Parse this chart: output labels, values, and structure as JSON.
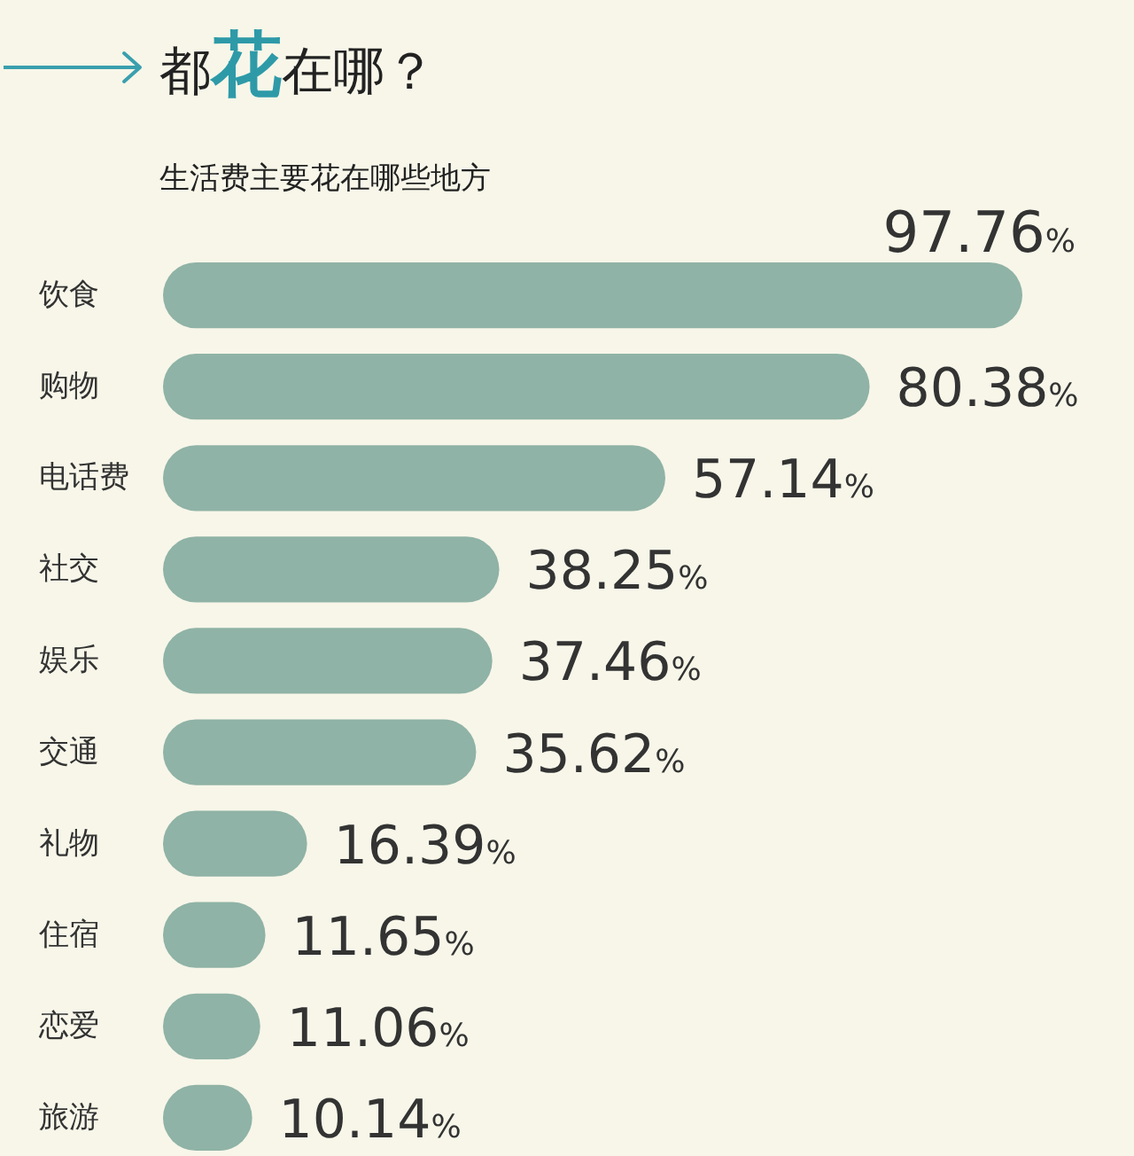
{
  "chart_data": {
    "type": "bar",
    "orientation": "horizontal",
    "title": "都花在哪？",
    "subtitle": "生活费主要花在哪些地方",
    "categories": [
      "饮食",
      "购物",
      "电话费",
      "社交",
      "娱乐",
      "交通",
      "礼物",
      "住宿",
      "恋爱",
      "旅游"
    ],
    "values": [
      97.76,
      80.38,
      57.14,
      38.25,
      37.46,
      35.62,
      16.39,
      11.65,
      11.06,
      10.14
    ],
    "value_labels": [
      "97.76%",
      "80.38%",
      "57.14%",
      "38.25%",
      "37.46%",
      "35.62%",
      "16.39%",
      "11.65%",
      "11.06%",
      "10.14%"
    ],
    "color": "#8fb3a6"
  }
}
